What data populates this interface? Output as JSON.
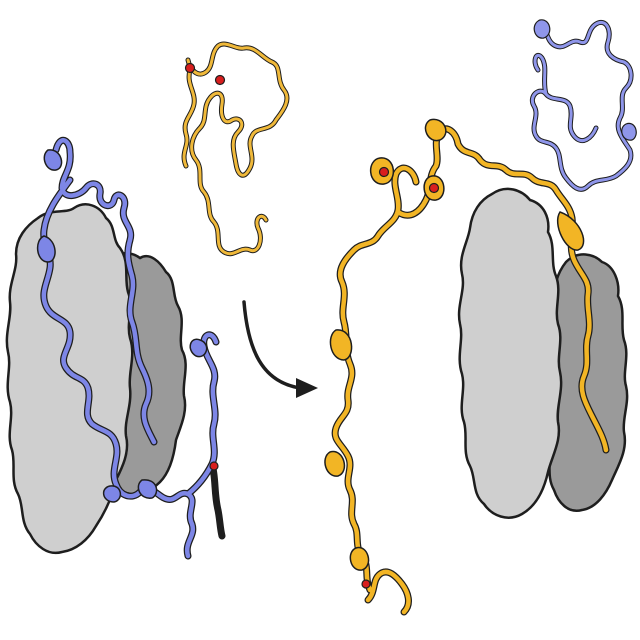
{
  "colors": {
    "background": "#ffffff",
    "subunit_light": "#cfcfcf",
    "subunit_dark": "#9a9a9a",
    "outline": "#1e1e1e",
    "chain_blue": "#7d86e6",
    "chain_blue_light": "#8f96ea",
    "chain_yellow": "#f2b525",
    "chain_yellow_light": "#f0b93a",
    "site_red": "#d81e1e",
    "arrow": "#1e1e1e"
  },
  "icons": {
    "arrow": "curved-right-arrow-icon",
    "site": "red-dot-icon"
  }
}
